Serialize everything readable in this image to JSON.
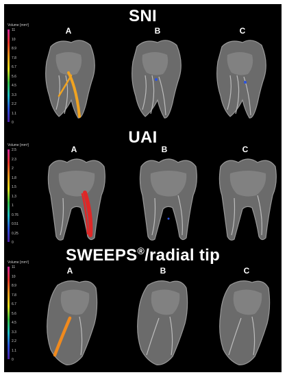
{
  "panels": [
    {
      "title": "SNI",
      "title_sup": "",
      "title_suffix": "",
      "legend": {
        "title": "Volume [mm³]",
        "ticks": [
          "11",
          "10",
          "8.9",
          "7.8",
          "6.7",
          "5.6",
          "4.5",
          "3.3",
          "2.2",
          "1.1",
          "0"
        ],
        "colors": [
          "#d6249a",
          "#e8342a",
          "#f39d1a",
          "#e8e31e",
          "#35c142",
          "#1ec3c8",
          "#2a52e0",
          "#4a1fa6"
        ]
      },
      "columns": [
        "A",
        "B",
        "C"
      ],
      "highlight_color": "#f0a321"
    },
    {
      "title": "UAI",
      "title_sup": "",
      "title_suffix": "",
      "legend": {
        "title": "Volume [mm³]",
        "ticks": [
          "2.5",
          "2.3",
          "2",
          "1.8",
          "1.5",
          "1.3",
          "1",
          "0.76",
          "0.51",
          "0.25",
          "0"
        ],
        "colors": [
          "#d6249a",
          "#e8342a",
          "#f39d1a",
          "#e8e31e",
          "#35c142",
          "#1ec3c8",
          "#2a52e0",
          "#4a1fa6"
        ]
      },
      "columns": [
        "A",
        "B",
        "C"
      ],
      "highlight_color": "#e02626"
    },
    {
      "title": "SWEEPS",
      "title_sup": "®",
      "title_suffix": "/radial tip",
      "legend": {
        "title": "Volume [mm³]",
        "ticks": [
          "11",
          "10",
          "8.9",
          "7.8",
          "6.7",
          "5.6",
          "4.5",
          "3.3",
          "2.2",
          "1.1",
          "0"
        ],
        "colors": [
          "#d6249a",
          "#e8342a",
          "#f39d1a",
          "#e8e31e",
          "#35c142",
          "#1ec3c8",
          "#2a52e0",
          "#4a1fa6"
        ]
      },
      "columns": [
        "A",
        "B",
        "C"
      ],
      "highlight_color": "#f08a1e"
    }
  ]
}
